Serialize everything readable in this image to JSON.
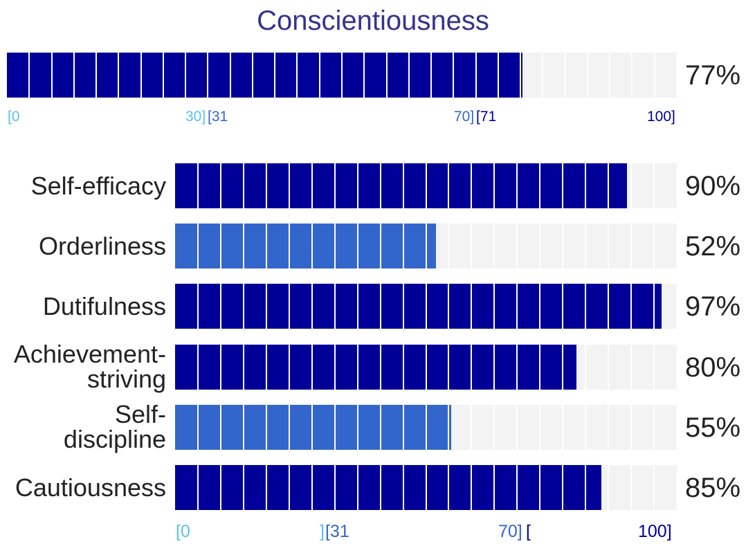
{
  "colors": {
    "low": "#5bc0eb",
    "average": "#3366cc",
    "high": "#000099",
    "track": "#f3f3f3",
    "title": "#33338f"
  },
  "title": "Conscientiousness",
  "overall": {
    "percent": 77,
    "percent_label": "77%",
    "level": "high",
    "scale_labels": [
      "[0",
      "30]",
      "[31",
      "70]",
      "[71",
      "100]"
    ]
  },
  "chart_data": [
    {
      "type": "bar",
      "orientation": "horizontal",
      "title": "Conscientiousness",
      "categories": [
        "Conscientiousness"
      ],
      "values": [
        77
      ],
      "xlim": [
        0,
        100
      ]
    },
    {
      "type": "bar",
      "orientation": "horizontal",
      "categories": [
        "Self-efficacy",
        "Orderliness",
        "Dutifulness",
        "Achievement-striving",
        "Self-discipline",
        "Cautiousness"
      ],
      "values": [
        90,
        52,
        97,
        80,
        55,
        85
      ],
      "value_labels": [
        "90%",
        "52%",
        "97%",
        "80%",
        "55%",
        "85%"
      ],
      "levels": [
        "high",
        "average",
        "high",
        "high",
        "average",
        "high"
      ],
      "xlim": [
        0,
        100
      ],
      "scale_labels": [
        "[0",
        "]",
        "[31",
        "70]",
        "[",
        "100]"
      ]
    }
  ],
  "facets": [
    {
      "label_lines": [
        "Self-efficacy"
      ],
      "percent": 90,
      "percent_label": "90%",
      "level": "high"
    },
    {
      "label_lines": [
        "Orderliness"
      ],
      "percent": 52,
      "percent_label": "52%",
      "level": "average"
    },
    {
      "label_lines": [
        "Dutifulness"
      ],
      "percent": 97,
      "percent_label": "97%",
      "level": "high"
    },
    {
      "label_lines": [
        "Achievement-",
        "striving"
      ],
      "percent": 80,
      "percent_label": "80%",
      "level": "high"
    },
    {
      "label_lines": [
        "Self-",
        "discipline"
      ],
      "percent": 55,
      "percent_label": "55%",
      "level": "average"
    },
    {
      "label_lines": [
        "Cautiousness"
      ],
      "percent": 85,
      "percent_label": "85%",
      "level": "high"
    }
  ],
  "facet_scale_labels": [
    "[0",
    "]",
    "[31",
    "70]",
    "[",
    "100]"
  ]
}
